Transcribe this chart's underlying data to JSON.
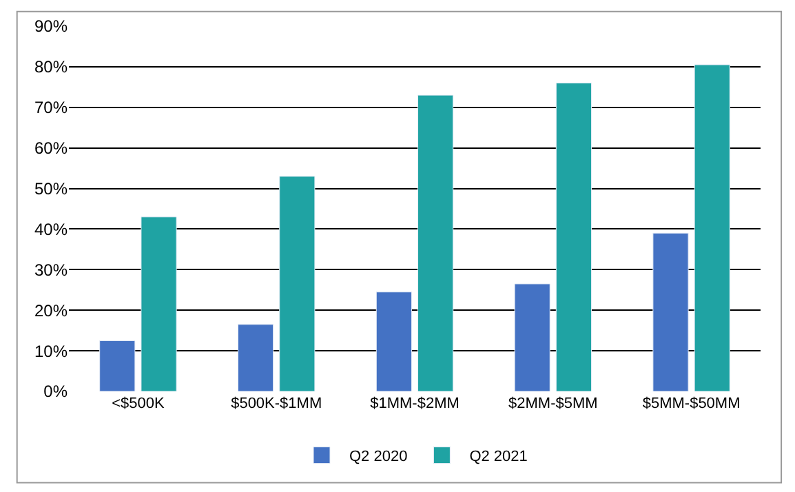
{
  "chart_data": {
    "type": "bar",
    "categories": [
      "<$500K",
      "$500K-$1MM",
      "$1MM-$2MM",
      "$2MM-$5MM",
      "$5MM-$50MM"
    ],
    "series": [
      {
        "name": "Q2 2020",
        "color": "#4472c4",
        "values": [
          12.5,
          16.5,
          24.5,
          26.5,
          39
        ]
      },
      {
        "name": "Q2 2021",
        "color": "#1fa3a3",
        "values": [
          43,
          53,
          73,
          76,
          80.5
        ]
      }
    ],
    "ylim": [
      0,
      90
    ],
    "yticks": [
      {
        "value": 0,
        "label": "0%"
      },
      {
        "value": 10,
        "label": "10%"
      },
      {
        "value": 20,
        "label": "20%"
      },
      {
        "value": 30,
        "label": "30%"
      },
      {
        "value": 40,
        "label": "40%"
      },
      {
        "value": 50,
        "label": "50%"
      },
      {
        "value": 60,
        "label": "60%"
      },
      {
        "value": 70,
        "label": "70%"
      },
      {
        "value": 80,
        "label": "80%"
      },
      {
        "value": 90,
        "label": "90%"
      }
    ],
    "grid": "y",
    "legend": "bottom"
  }
}
